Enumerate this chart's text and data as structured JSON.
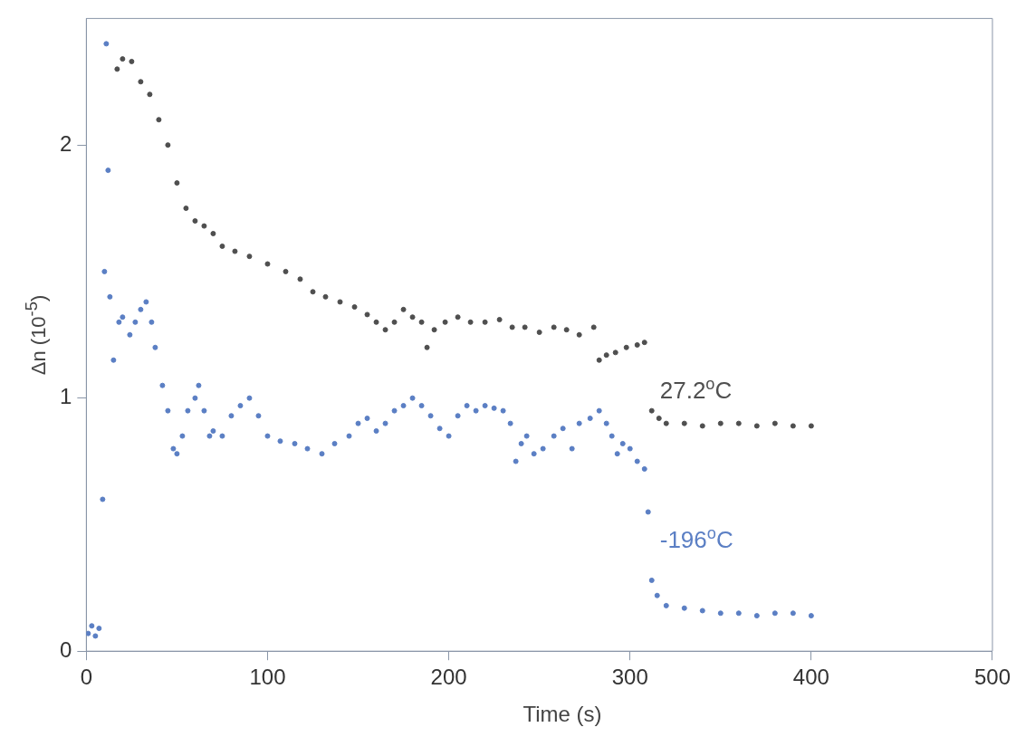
{
  "chart_data": {
    "type": "scatter",
    "xlabel": "Time (s)",
    "ylabel": "Δn (10$^{-5}$)",
    "xlim": [
      0,
      500
    ],
    "xticks": [
      0,
      100,
      200,
      300,
      400,
      500
    ],
    "ylim": [
      0,
      2.5
    ],
    "yticks": [
      0,
      1,
      2
    ],
    "grid": false,
    "legend": false,
    "marker": "circle",
    "series": [
      {
        "name": "27.2$^{o}$C",
        "color": "#4f4f4f",
        "x": [
          17,
          20,
          25,
          30,
          35,
          40,
          45,
          50,
          55,
          60,
          65,
          70,
          75,
          82,
          90,
          100,
          110,
          118,
          125,
          132,
          140,
          148,
          155,
          160,
          165,
          170,
          175,
          180,
          185,
          188,
          192,
          198,
          205,
          212,
          220,
          228,
          235,
          242,
          250,
          258,
          265,
          272,
          280,
          283,
          287,
          292,
          298,
          304,
          308,
          312,
          316,
          320,
          330,
          340,
          350,
          360,
          370,
          380,
          390,
          400
        ],
        "values": [
          2.3,
          2.34,
          2.33,
          2.25,
          2.2,
          2.1,
          2.0,
          1.85,
          1.75,
          1.7,
          1.68,
          1.65,
          1.6,
          1.58,
          1.56,
          1.53,
          1.5,
          1.47,
          1.42,
          1.4,
          1.38,
          1.36,
          1.33,
          1.3,
          1.27,
          1.3,
          1.35,
          1.32,
          1.3,
          1.2,
          1.27,
          1.3,
          1.32,
          1.3,
          1.3,
          1.31,
          1.28,
          1.28,
          1.26,
          1.28,
          1.27,
          1.25,
          1.28,
          1.15,
          1.17,
          1.18,
          1.2,
          1.21,
          1.22,
          0.95,
          0.92,
          0.9,
          0.9,
          0.89,
          0.9,
          0.9,
          0.89,
          0.9,
          0.89,
          0.89
        ]
      },
      {
        "name": "-196$^{o}$C",
        "color": "#5b7fc4",
        "x": [
          1,
          3,
          5,
          7,
          9,
          10,
          11,
          12,
          13,
          15,
          18,
          20,
          24,
          27,
          30,
          33,
          36,
          38,
          42,
          45,
          48,
          50,
          53,
          56,
          60,
          62,
          65,
          68,
          70,
          75,
          80,
          85,
          90,
          95,
          100,
          107,
          115,
          122,
          130,
          137,
          145,
          150,
          155,
          160,
          165,
          170,
          175,
          180,
          185,
          190,
          195,
          200,
          205,
          210,
          215,
          220,
          225,
          230,
          234,
          237,
          240,
          243,
          247,
          252,
          258,
          263,
          268,
          272,
          278,
          283,
          287,
          290,
          293,
          296,
          300,
          304,
          308,
          310,
          312,
          315,
          320,
          330,
          340,
          350,
          360,
          370,
          380,
          390,
          400
        ],
        "values": [
          0.07,
          0.1,
          0.06,
          0.09,
          0.6,
          1.5,
          2.4,
          1.9,
          1.4,
          1.15,
          1.3,
          1.32,
          1.25,
          1.3,
          1.35,
          1.38,
          1.3,
          1.2,
          1.05,
          0.95,
          0.8,
          0.78,
          0.85,
          0.95,
          1.0,
          1.05,
          0.95,
          0.85,
          0.87,
          0.85,
          0.93,
          0.97,
          1.0,
          0.93,
          0.85,
          0.83,
          0.82,
          0.8,
          0.78,
          0.82,
          0.85,
          0.9,
          0.92,
          0.87,
          0.9,
          0.95,
          0.97,
          1.0,
          0.97,
          0.93,
          0.88,
          0.85,
          0.93,
          0.97,
          0.95,
          0.97,
          0.96,
          0.95,
          0.9,
          0.75,
          0.82,
          0.85,
          0.78,
          0.8,
          0.85,
          0.88,
          0.8,
          0.9,
          0.92,
          0.95,
          0.9,
          0.85,
          0.78,
          0.82,
          0.8,
          0.75,
          0.72,
          0.55,
          0.28,
          0.22,
          0.18,
          0.17,
          0.16,
          0.15,
          0.15,
          0.14,
          0.15,
          0.15,
          0.14
        ]
      }
    ]
  }
}
